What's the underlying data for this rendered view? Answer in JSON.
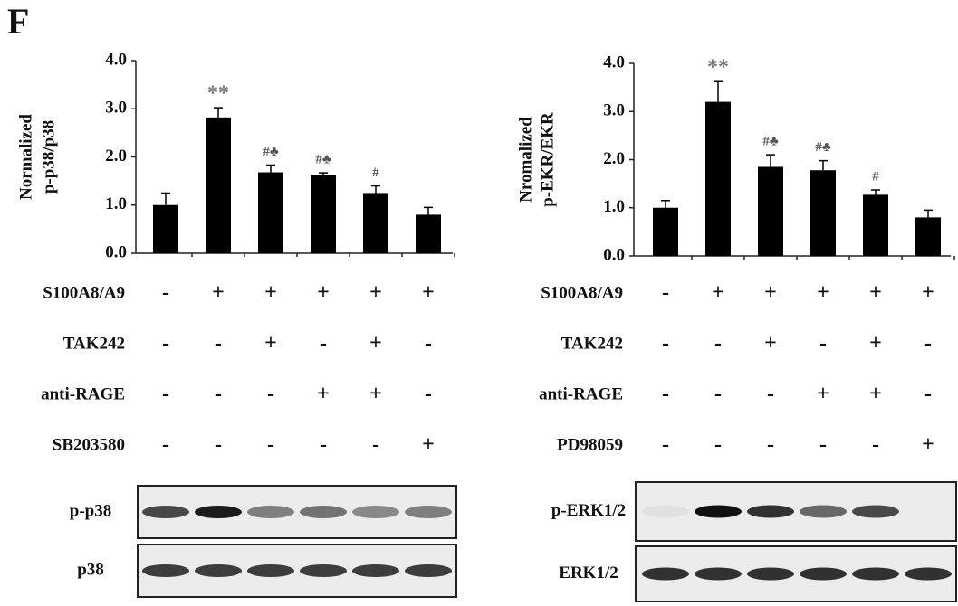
{
  "panel_label": "F",
  "chart_data": [
    {
      "type": "bar",
      "ylabel": [
        "Normalized",
        "p-p38/p38"
      ],
      "categories": [
        null,
        null,
        null,
        null,
        null,
        null
      ],
      "values": [
        1.0,
        2.82,
        1.68,
        1.62,
        1.25,
        0.8
      ],
      "errors": [
        0.25,
        0.2,
        0.15,
        0.05,
        0.15,
        0.15
      ],
      "annotations": [
        null,
        "**",
        "#♣",
        "#♣",
        "#",
        null
      ],
      "color": "#000000",
      "ylim": [
        0,
        4
      ],
      "yticks": [
        {
          "value": 0,
          "label": "0.0"
        },
        {
          "value": 1,
          "label": "1.0"
        },
        {
          "value": 2,
          "label": "2.0"
        },
        {
          "value": 3,
          "label": "3.0"
        },
        {
          "value": 4,
          "label": "4.0"
        }
      ],
      "treatments": [
        {
          "name": "S100A8/A9",
          "signs": [
            "-",
            "+",
            "+",
            "+",
            "+",
            "+"
          ]
        },
        {
          "name": "TAK242",
          "signs": [
            "-",
            "-",
            "+",
            "-",
            "+",
            "-"
          ]
        },
        {
          "name": "anti-RAGE",
          "signs": [
            "-",
            "-",
            "-",
            "+",
            "+",
            "-"
          ]
        },
        {
          "name": "SB203580",
          "signs": [
            "-",
            "-",
            "-",
            "-",
            "-",
            "+"
          ]
        }
      ],
      "blots": [
        "p-p38",
        "p38"
      ]
    },
    {
      "type": "bar",
      "ylabel": [
        "Nromalized",
        "p-EKR/EKR"
      ],
      "categories": [
        null,
        null,
        null,
        null,
        null,
        null
      ],
      "values": [
        1.0,
        3.2,
        1.85,
        1.78,
        1.27,
        0.8
      ],
      "errors": [
        0.15,
        0.42,
        0.25,
        0.2,
        0.1,
        0.15
      ],
      "annotations": [
        null,
        "**",
        "#♣",
        "#♣",
        "#",
        null
      ],
      "color": "#000000",
      "ylim": [
        0,
        4
      ],
      "yticks": [
        {
          "value": 0,
          "label": "0.0"
        },
        {
          "value": 1,
          "label": "1.0"
        },
        {
          "value": 2,
          "label": "2.0"
        },
        {
          "value": 3,
          "label": "3.0"
        },
        {
          "value": 4,
          "label": "4.0"
        }
      ],
      "treatments": [
        {
          "name": "S100A8/A9",
          "signs": [
            "-",
            "+",
            "+",
            "+",
            "+",
            "+"
          ]
        },
        {
          "name": "TAK242",
          "signs": [
            "-",
            "-",
            "+",
            "-",
            "+",
            "-"
          ]
        },
        {
          "name": "anti-RAGE",
          "signs": [
            "-",
            "-",
            "-",
            "+",
            "+",
            "-"
          ]
        },
        {
          "name": "PD98059",
          "signs": [
            "-",
            "-",
            "-",
            "-",
            "-",
            "+"
          ]
        }
      ],
      "blots": [
        "p-ERK1/2",
        "ERK1/2"
      ]
    }
  ]
}
